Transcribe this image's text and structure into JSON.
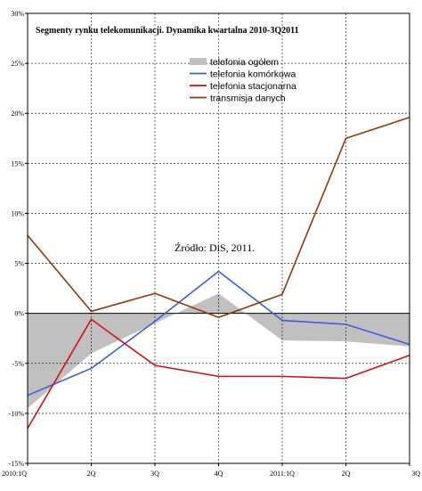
{
  "chart_data": {
    "type": "line",
    "title": "Segmenty rynku telekomunikacji. Dynamika kwartalna 2010-3Q2011",
    "categories": [
      "2010:1Q",
      "2Q",
      "3Q",
      "4Q",
      "2011:1Q",
      "2Q",
      "3Q"
    ],
    "ylim": [
      -15,
      30
    ],
    "yticks": [
      -15,
      -10,
      -5,
      0,
      5,
      10,
      15,
      20,
      25,
      30
    ],
    "ytick_suffix": "%",
    "grid": "horizontal dashed",
    "legend_position": "top-right",
    "annotation": "Źródło: DiS, 2011.",
    "series": [
      {
        "name": "telefonia ogółem",
        "style": "area",
        "color": "#c0c0c0",
        "values": [
          -9.5,
          -4.0,
          -1.0,
          2.0,
          -2.7,
          -2.8,
          -3.3
        ]
      },
      {
        "name": "telefonia komórkowa",
        "style": "line",
        "color": "#3a5fd9",
        "values": [
          -8.2,
          -5.5,
          -0.8,
          4.2,
          -0.7,
          -1.1,
          -3.1
        ]
      },
      {
        "name": "telefonia stacjonarna",
        "style": "line",
        "color": "#d01010",
        "values": [
          -11.5,
          -0.6,
          -5.2,
          -6.3,
          -6.3,
          -6.5,
          -4.2
        ]
      },
      {
        "name": "transmisja danych",
        "style": "line",
        "color": "#8b3a0a",
        "values": [
          7.8,
          0.2,
          2.0,
          -0.4,
          1.9,
          17.5,
          19.6
        ]
      }
    ]
  }
}
